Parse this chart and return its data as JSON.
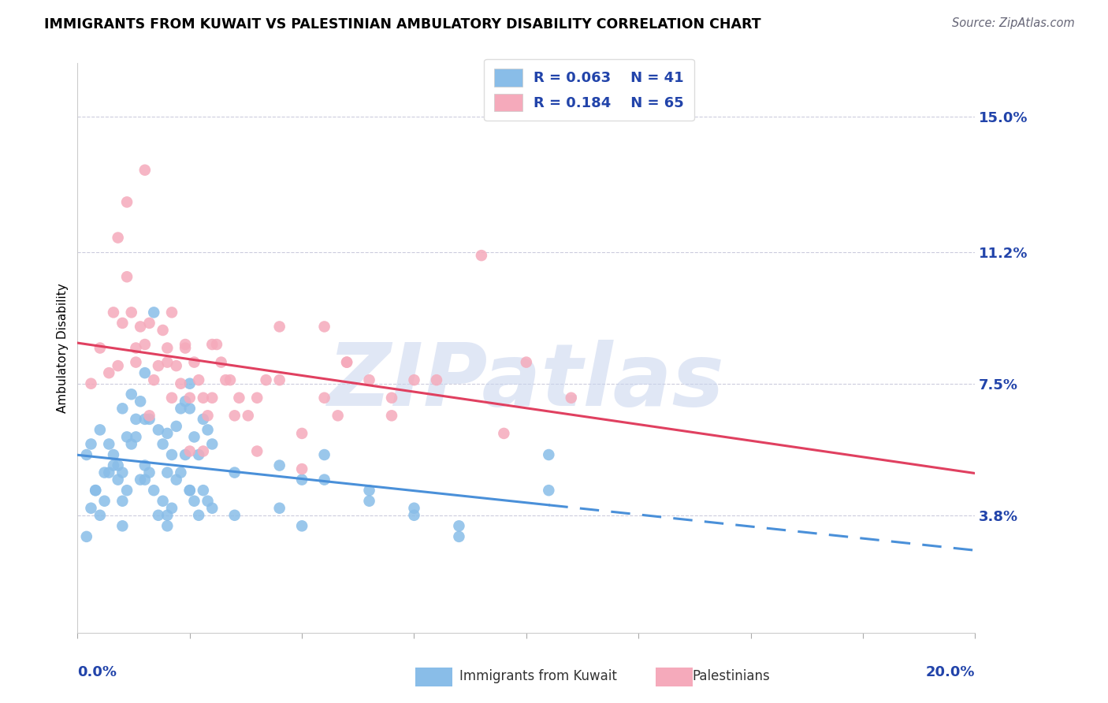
{
  "title": "IMMIGRANTS FROM KUWAIT VS PALESTINIAN AMBULATORY DISABILITY CORRELATION CHART",
  "source_text": "Source: ZipAtlas.com",
  "ylabel": "Ambulatory Disability",
  "ytick_labels": [
    "3.8%",
    "7.5%",
    "11.2%",
    "15.0%"
  ],
  "ytick_values": [
    3.8,
    7.5,
    11.2,
    15.0
  ],
  "xlim": [
    0.0,
    20.0
  ],
  "ylim": [
    0.5,
    16.5
  ],
  "color_kuwait": "#89BDE8",
  "color_palestinians": "#F5AABB",
  "line_color_kuwait": "#4A90D9",
  "line_color_palestinians": "#E04060",
  "watermark_color": "#C8D4EE",
  "kuwait_points_x": [
    0.2,
    0.3,
    0.4,
    0.5,
    0.6,
    0.7,
    0.8,
    0.9,
    1.0,
    1.1,
    1.2,
    1.3,
    1.4,
    1.5,
    1.6,
    1.7,
    1.8,
    1.9,
    2.0,
    2.1,
    2.2,
    2.3,
    2.4,
    2.5,
    2.6,
    2.7,
    2.8,
    2.9,
    3.0,
    3.5,
    4.5,
    5.0,
    5.5,
    6.5,
    7.5,
    8.5,
    10.5,
    1.0,
    1.5,
    2.0,
    2.5
  ],
  "kuwait_points_y": [
    5.5,
    5.8,
    4.5,
    6.2,
    5.0,
    5.8,
    5.5,
    5.2,
    6.8,
    6.0,
    7.2,
    6.5,
    7.0,
    7.8,
    6.5,
    9.5,
    6.2,
    5.8,
    6.1,
    5.5,
    6.3,
    6.8,
    7.0,
    7.5,
    6.0,
    5.5,
    6.5,
    6.2,
    5.8,
    5.0,
    5.2,
    4.8,
    5.5,
    4.5,
    4.0,
    3.5,
    5.5,
    4.2,
    6.5,
    5.0,
    6.8
  ],
  "kuwait_points_y_low": [
    3.2,
    4.0,
    4.5,
    3.8,
    4.2,
    5.0,
    5.2,
    4.8,
    5.0,
    4.5,
    5.8,
    6.0,
    4.8,
    5.2,
    5.0,
    4.5,
    3.8,
    4.2,
    3.5,
    4.0,
    4.8,
    5.0,
    5.5,
    4.5,
    4.2,
    3.8,
    4.5,
    4.2,
    4.0,
    3.8,
    4.0,
    3.5,
    4.8,
    4.2,
    3.8,
    3.2,
    4.5,
    3.5,
    4.8,
    3.8,
    4.5
  ],
  "palestinians_points_x": [
    0.3,
    0.5,
    0.7,
    0.8,
    0.9,
    1.0,
    1.1,
    1.2,
    1.3,
    1.4,
    1.5,
    1.6,
    1.7,
    1.8,
    1.9,
    2.0,
    2.1,
    2.2,
    2.3,
    2.4,
    2.5,
    2.6,
    2.7,
    2.8,
    2.9,
    3.0,
    3.1,
    3.2,
    3.4,
    3.6,
    3.8,
    4.0,
    4.2,
    4.5,
    5.0,
    5.5,
    6.0,
    6.5,
    7.0,
    8.0,
    9.0,
    10.0,
    11.0,
    3.3,
    2.5,
    1.5,
    2.0,
    2.8,
    3.5,
    4.0,
    5.0,
    6.0,
    7.5,
    9.5,
    0.9,
    1.1,
    1.3,
    1.6,
    2.1,
    2.4,
    3.0,
    4.5,
    5.5,
    7.0,
    5.8
  ],
  "palestinians_points_y": [
    7.5,
    8.5,
    7.8,
    9.5,
    8.0,
    9.2,
    10.5,
    9.5,
    8.5,
    9.1,
    13.5,
    9.2,
    7.6,
    8.0,
    9.0,
    8.5,
    9.5,
    8.0,
    7.5,
    8.5,
    7.1,
    8.1,
    7.6,
    7.1,
    6.6,
    7.1,
    8.6,
    8.1,
    7.6,
    7.1,
    6.6,
    7.1,
    7.6,
    7.6,
    6.1,
    7.1,
    8.1,
    7.6,
    7.1,
    7.6,
    11.1,
    8.1,
    7.1,
    7.6,
    5.6,
    8.6,
    8.1,
    5.6,
    6.6,
    5.6,
    5.1,
    8.1,
    7.6,
    6.1,
    11.6,
    12.6,
    8.1,
    6.6,
    7.1,
    8.6,
    8.6,
    9.1,
    9.1,
    6.6,
    6.6
  ]
}
